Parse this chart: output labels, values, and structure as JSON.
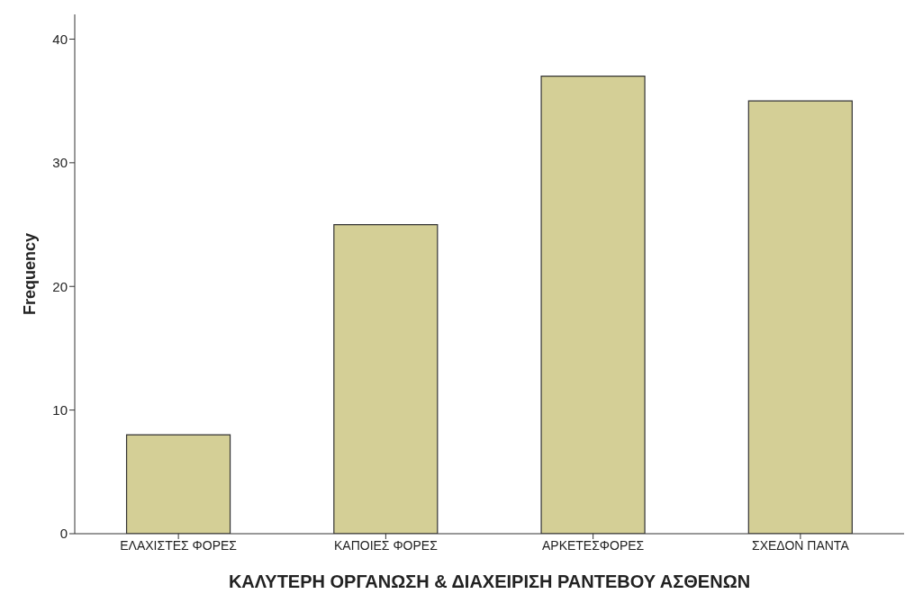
{
  "chart_data": {
    "type": "bar",
    "xlabel": "ΚΑΛΥΤΕΡΗ ΟΡΓΑΝΩΣΗ & ΔΙΑΧΕΙΡΙΣΗ ΡΑΝΤΕΒΟΥ ΑΣΘΕΝΩΝ",
    "ylabel": "Frequency",
    "categories": [
      "ΕΛΑΧΙΣΤΕΣ ΦΟΡΕΣ",
      "ΚΑΠΟΙΕΣ ΦΟΡΕΣ",
      "ΑΡΚΕΤΕΣΦΟΡΕΣ",
      "ΣΧΕΔΟΝ ΠΑΝΤΑ"
    ],
    "values": [
      8,
      25,
      37,
      35
    ],
    "color": "#d4cf96",
    "ylim": [
      0,
      42
    ],
    "yticks": [
      0,
      10,
      20,
      30,
      40
    ]
  }
}
